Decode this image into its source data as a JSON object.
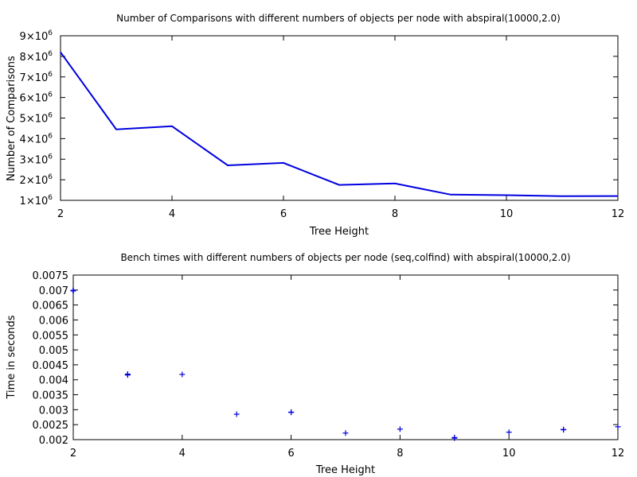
{
  "chart_data": [
    {
      "type": "line",
      "title": "Number of Comparisons with different numbers of objects per node with abspiral(10000,2.0)",
      "xlabel": "Tree Height",
      "ylabel": "Number of Comparisons",
      "xlim": [
        2,
        12
      ],
      "ylim": [
        1000000,
        9000000
      ],
      "x_ticks": [
        2,
        4,
        6,
        8,
        10,
        12
      ],
      "y_ticks": [
        1000000,
        2000000,
        3000000,
        4000000,
        5000000,
        6000000,
        7000000,
        8000000,
        9000000
      ],
      "y_tick_labels": [
        {
          "mantissa": "1",
          "base": "×10",
          "exp": "6"
        },
        {
          "mantissa": "2",
          "base": "×10",
          "exp": "6"
        },
        {
          "mantissa": "3",
          "base": "×10",
          "exp": "6"
        },
        {
          "mantissa": "4",
          "base": "×10",
          "exp": "6"
        },
        {
          "mantissa": "5",
          "base": "×10",
          "exp": "6"
        },
        {
          "mantissa": "6",
          "base": "×10",
          "exp": "6"
        },
        {
          "mantissa": "7",
          "base": "×10",
          "exp": "6"
        },
        {
          "mantissa": "8",
          "base": "×10",
          "exp": "6"
        },
        {
          "mantissa": "9",
          "base": "×10",
          "exp": "6"
        }
      ],
      "grid": false,
      "color": "#0000e0",
      "series": [
        {
          "x": [
            2,
            3,
            4,
            5,
            6,
            7,
            8,
            9,
            10,
            11,
            12
          ],
          "y": [
            8200000,
            4450000,
            4600000,
            2700000,
            2820000,
            1750000,
            1820000,
            1280000,
            1250000,
            1200000,
            1210000
          ]
        }
      ]
    },
    {
      "type": "scatter",
      "title": "Bench times with different numbers of objects per node (seq,colfind) with abspiral(10000,2.0)",
      "xlabel": "Tree Height",
      "ylabel": "Time in seconds",
      "xlim": [
        2,
        12
      ],
      "ylim": [
        0.002,
        0.0075
      ],
      "x_ticks": [
        2,
        4,
        6,
        8,
        10,
        12
      ],
      "y_ticks": [
        "0.002",
        "0.0025",
        "0.003",
        "0.0035",
        "0.004",
        "0.0045",
        "0.005",
        "0.0055",
        "0.006",
        "0.0065",
        "0.007",
        "0.0075"
      ],
      "grid": false,
      "color": "#0000e0",
      "series": [
        {
          "points": [
            [
              2,
              0.00698
            ],
            [
              2,
              0.00698
            ],
            [
              2,
              0.00697
            ],
            [
              2,
              0.00699
            ],
            [
              2,
              0.00698
            ],
            [
              3,
              0.00418
            ],
            [
              3,
              0.00416
            ],
            [
              3,
              0.00419
            ],
            [
              4,
              0.00418
            ],
            [
              5,
              0.00285
            ],
            [
              6,
              0.00292
            ],
            [
              6,
              0.00291
            ],
            [
              7,
              0.00222
            ],
            [
              8,
              0.00235
            ],
            [
              9,
              0.00207
            ],
            [
              9,
              0.00205
            ],
            [
              10,
              0.00225
            ],
            [
              11,
              0.00234
            ],
            [
              11,
              0.00233
            ],
            [
              12,
              0.00243
            ]
          ]
        }
      ]
    }
  ]
}
